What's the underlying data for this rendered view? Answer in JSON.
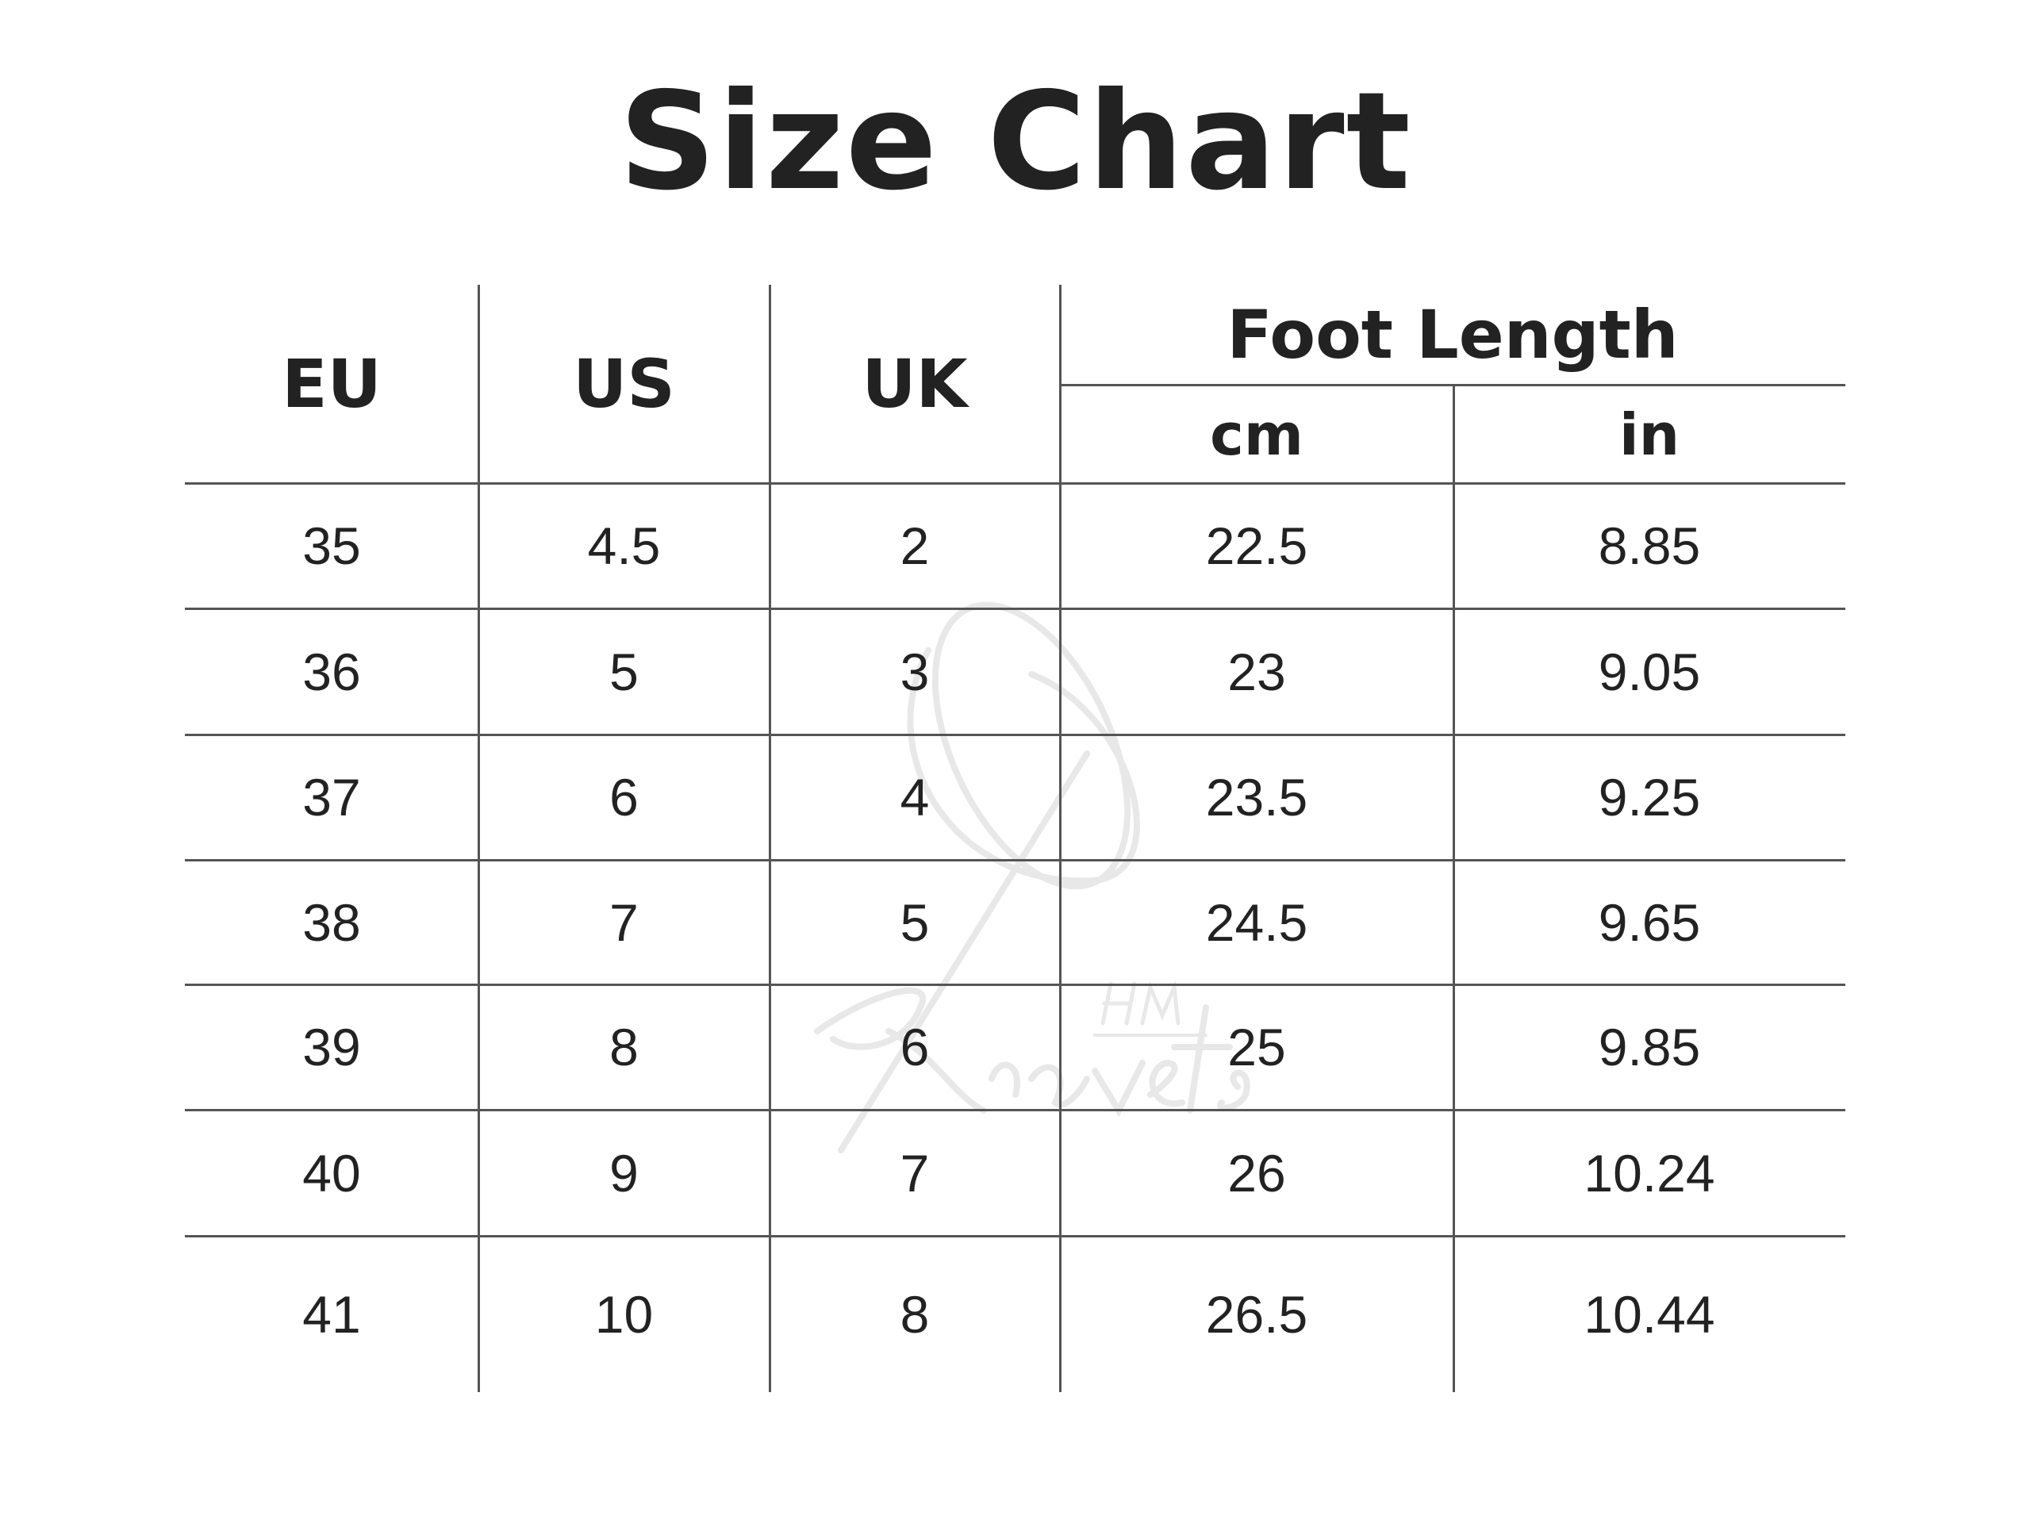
{
  "title": "Size Chart",
  "headers": {
    "eu": "EU",
    "us": "US",
    "uk": "UK",
    "foot_length": "Foot Length",
    "cm": "cm",
    "in": "in"
  },
  "rows": [
    [
      "35",
      "4.5",
      "2",
      "22.5",
      "8.85"
    ],
    [
      "36",
      "5",
      "3",
      "23",
      "9.05"
    ],
    [
      "37",
      "6",
      "4",
      "23.5",
      "9.25"
    ],
    [
      "38",
      "7",
      "5",
      "24.5",
      "9.65"
    ],
    [
      "39",
      "8",
      "6",
      "25",
      "9.85"
    ],
    [
      "40",
      "9",
      "7",
      "26",
      "10.24"
    ],
    [
      "41",
      "10",
      "8",
      "26.5",
      "10.44"
    ]
  ],
  "watermark": {
    "monogram": "HM",
    "name": "Kravets"
  },
  "colors": {
    "text": "#222222",
    "lines": "#555555",
    "watermark": "#e6e6e6"
  }
}
